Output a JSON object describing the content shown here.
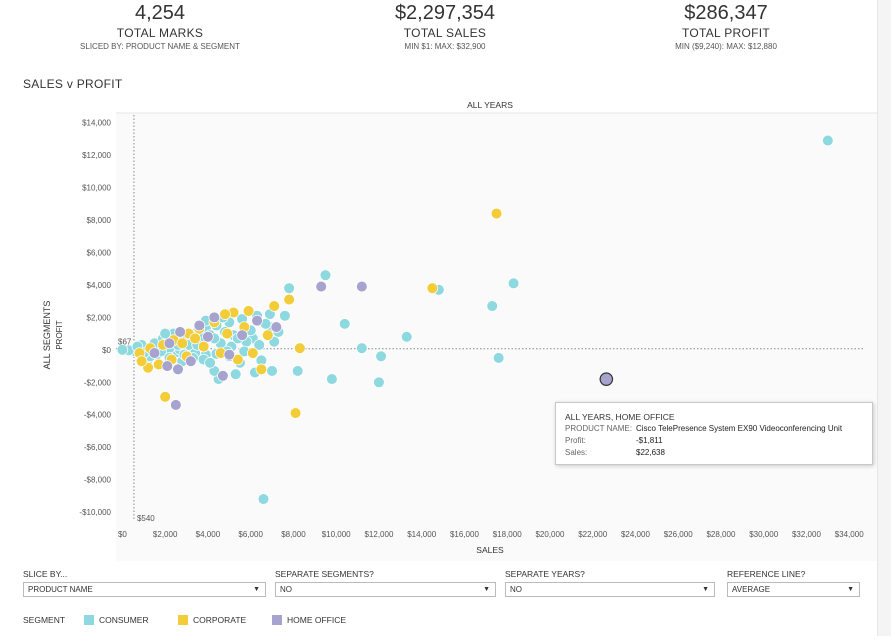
{
  "kpis": {
    "marks": {
      "value": "4,254",
      "label": "TOTAL MARKS",
      "sub": "SLICED BY: PRODUCT NAME & SEGMENT"
    },
    "sales": {
      "value": "$2,297,354",
      "label": "TOTAL SALES",
      "sub": "MIN $1:  MAX: $32,900"
    },
    "profit": {
      "value": "$286,347",
      "label": "TOTAL PROFIT",
      "sub": "MIN ($9,240):  MAX: $12,880"
    }
  },
  "chart_title": "SALES v PROFIT",
  "chart_data": {
    "type": "scatter",
    "title": "SALES v PROFIT",
    "panel_header": "ALL YEARS",
    "xlabel": "SALES",
    "ylabel": "PROFIT",
    "row_header": "ALL SEGMENTS",
    "xlim": [
      -300,
      35300
    ],
    "ylim": [
      -10800,
      14600
    ],
    "x_ticks": [
      0,
      2000,
      4000,
      6000,
      8000,
      10000,
      12000,
      14000,
      16000,
      18000,
      20000,
      22000,
      24000,
      26000,
      28000,
      30000,
      32000,
      34000
    ],
    "x_tick_labels": [
      "$0",
      "$2,000",
      "$4,000",
      "$6,000",
      "$8,000",
      "$10,000",
      "$12,000",
      "$14,000",
      "$16,000",
      "$18,000",
      "$20,000",
      "$22,000",
      "$24,000",
      "$26,000",
      "$28,000",
      "$30,000",
      "$32,000",
      "$34,000"
    ],
    "y_ticks": [
      14000,
      12000,
      10000,
      8000,
      6000,
      4000,
      2000,
      0,
      -2000,
      -4000,
      -6000,
      -8000,
      -10000
    ],
    "y_tick_labels": [
      "$14,000",
      "$12,000",
      "$10,000",
      "$8,000",
      "$6,000",
      "$4,000",
      "$2,000",
      "$0",
      "-$2,000",
      "-$4,000",
      "-$6,000",
      "-$8,000",
      "-$10,000"
    ],
    "reference_lines": {
      "type": "AVERAGE",
      "profit_avg": 67,
      "profit_label": "$67",
      "sales_avg": 540,
      "sales_label": "$540"
    },
    "series": [
      {
        "name": "CONSUMER",
        "color": "#8ed9e0",
        "points": [
          [
            33000,
            12900
          ],
          [
            18300,
            4100
          ],
          [
            17300,
            2700
          ],
          [
            14800,
            3700
          ],
          [
            9500,
            4600
          ],
          [
            7800,
            3800
          ],
          [
            6300,
            2100
          ],
          [
            6900,
            2200
          ],
          [
            5600,
            1900
          ],
          [
            5000,
            1700
          ],
          [
            4400,
            1500
          ],
          [
            3900,
            1300
          ],
          [
            3500,
            1100
          ],
          [
            3200,
            900
          ],
          [
            2900,
            700
          ],
          [
            2600,
            600
          ],
          [
            2300,
            500
          ],
          [
            2000,
            400
          ],
          [
            1700,
            300
          ],
          [
            1400,
            200
          ],
          [
            1100,
            100
          ],
          [
            800,
            50
          ],
          [
            600,
            -100
          ],
          [
            300,
            -30
          ],
          [
            0,
            0
          ],
          [
            1200,
            -600
          ],
          [
            1600,
            -300
          ],
          [
            2100,
            -200
          ],
          [
            2500,
            -150
          ],
          [
            3000,
            -100
          ],
          [
            3400,
            -200
          ],
          [
            3900,
            -300
          ],
          [
            4400,
            -250
          ],
          [
            5000,
            -400
          ],
          [
            5500,
            -800
          ],
          [
            6500,
            -650
          ],
          [
            4500,
            -1800
          ],
          [
            4300,
            -1300
          ],
          [
            5300,
            -1500
          ],
          [
            6200,
            -1400
          ],
          [
            7000,
            -1300
          ],
          [
            8200,
            -1300
          ],
          [
            9800,
            -1800
          ],
          [
            12000,
            -2000
          ],
          [
            12100,
            -400
          ],
          [
            11200,
            100
          ],
          [
            10400,
            1600
          ],
          [
            13300,
            800
          ],
          [
            17600,
            -500
          ],
          [
            6600,
            -9200
          ],
          [
            7300,
            1100
          ],
          [
            6900,
            1400
          ],
          [
            6100,
            700
          ],
          [
            5800,
            500
          ],
          [
            5200,
            900
          ],
          [
            4800,
            1100
          ],
          [
            4100,
            900
          ],
          [
            3600,
            500
          ],
          [
            3100,
            300
          ],
          [
            2700,
            0
          ],
          [
            2200,
            100
          ],
          [
            1800,
            -100
          ],
          [
            1500,
            400
          ],
          [
            900,
            300
          ],
          [
            1900,
            700
          ],
          [
            2400,
            1000
          ],
          [
            3700,
            800
          ],
          [
            4600,
            400
          ],
          [
            5100,
            200
          ],
          [
            5700,
            -100
          ],
          [
            6400,
            300
          ],
          [
            7100,
            500
          ],
          [
            1300,
            -400
          ],
          [
            2200,
            -500
          ],
          [
            2800,
            -700
          ],
          [
            3300,
            -500
          ],
          [
            3800,
            -600
          ],
          [
            4300,
            700
          ],
          [
            4900,
            -100
          ],
          [
            7600,
            2100
          ],
          [
            6000,
            1200
          ],
          [
            3900,
            1800
          ],
          [
            4700,
            2000
          ],
          [
            2000,
            1000
          ],
          [
            2600,
            300
          ],
          [
            3500,
            300
          ],
          [
            1000,
            -200
          ],
          [
            700,
            200
          ],
          [
            2900,
            -300
          ],
          [
            4100,
            -800
          ],
          [
            5400,
            700
          ],
          [
            6700,
            1600
          ]
        ]
      },
      {
        "name": "CORPORATE",
        "color": "#f3cd39",
        "points": [
          [
            17500,
            8400
          ],
          [
            14500,
            3800
          ],
          [
            7800,
            3100
          ],
          [
            7100,
            2700
          ],
          [
            5900,
            2400
          ],
          [
            5200,
            2300
          ],
          [
            4800,
            2200
          ],
          [
            4300,
            1700
          ],
          [
            3600,
            1300
          ],
          [
            3100,
            1000
          ],
          [
            2400,
            600
          ],
          [
            1900,
            300
          ],
          [
            1300,
            100
          ],
          [
            800,
            -200
          ],
          [
            1200,
            -1100
          ],
          [
            1700,
            -900
          ],
          [
            2300,
            -600
          ],
          [
            3000,
            -400
          ],
          [
            4600,
            -200
          ],
          [
            5400,
            -600
          ],
          [
            6100,
            -200
          ],
          [
            8300,
            100
          ],
          [
            8100,
            -3900
          ],
          [
            2000,
            -2900
          ],
          [
            6500,
            -1200
          ],
          [
            4900,
            1000
          ],
          [
            2800,
            400
          ],
          [
            3400,
            700
          ],
          [
            5700,
            1400
          ],
          [
            6800,
            900
          ],
          [
            900,
            -700
          ],
          [
            3800,
            200
          ]
        ]
      },
      {
        "name": "HOME OFFICE",
        "color": "#a6a4cf",
        "points": [
          [
            22638,
            -1811
          ],
          [
            11200,
            3900
          ],
          [
            9300,
            3900
          ],
          [
            7200,
            1400
          ],
          [
            5600,
            900
          ],
          [
            4300,
            2000
          ],
          [
            3600,
            1500
          ],
          [
            2700,
            1100
          ],
          [
            2200,
            400
          ],
          [
            1500,
            -200
          ],
          [
            2100,
            -1000
          ],
          [
            2600,
            -1200
          ],
          [
            2500,
            -3400
          ],
          [
            4700,
            -1600
          ],
          [
            3200,
            -700
          ],
          [
            4000,
            800
          ],
          [
            6300,
            1800
          ],
          [
            5000,
            -300
          ]
        ]
      }
    ],
    "highlight": {
      "series": "HOME OFFICE",
      "x": 22638,
      "y": -1811,
      "product_name": "Cisco TelePresence System EX90 Videoconferencing Unit"
    }
  },
  "tooltip": {
    "title": "ALL YEARS, HOME OFFICE",
    "rows": [
      {
        "label": "PRODUCT NAME:",
        "value": "Cisco TelePresence System EX90 Videoconferencing Unit"
      },
      {
        "label": "Profit:",
        "value": "-$1,811"
      },
      {
        "label": "Sales:",
        "value": "$22,638"
      }
    ]
  },
  "controls": [
    {
      "label": "SLICE BY...",
      "value": "PRODUCT NAME"
    },
    {
      "label": "SEPARATE SEGMENTS?",
      "value": "NO"
    },
    {
      "label": "SEPARATE YEARS?",
      "value": "NO"
    },
    {
      "label": "REFERENCE LINE?",
      "value": "AVERAGE"
    }
  ],
  "legend": {
    "title": "SEGMENT",
    "items": [
      {
        "label": "CONSUMER",
        "color": "#8ed9e0"
      },
      {
        "label": "CORPORATE",
        "color": "#f3cd39"
      },
      {
        "label": "HOME OFFICE",
        "color": "#a6a4cf"
      }
    ]
  },
  "icons": {
    "dropdown": "chevron-down-icon"
  }
}
